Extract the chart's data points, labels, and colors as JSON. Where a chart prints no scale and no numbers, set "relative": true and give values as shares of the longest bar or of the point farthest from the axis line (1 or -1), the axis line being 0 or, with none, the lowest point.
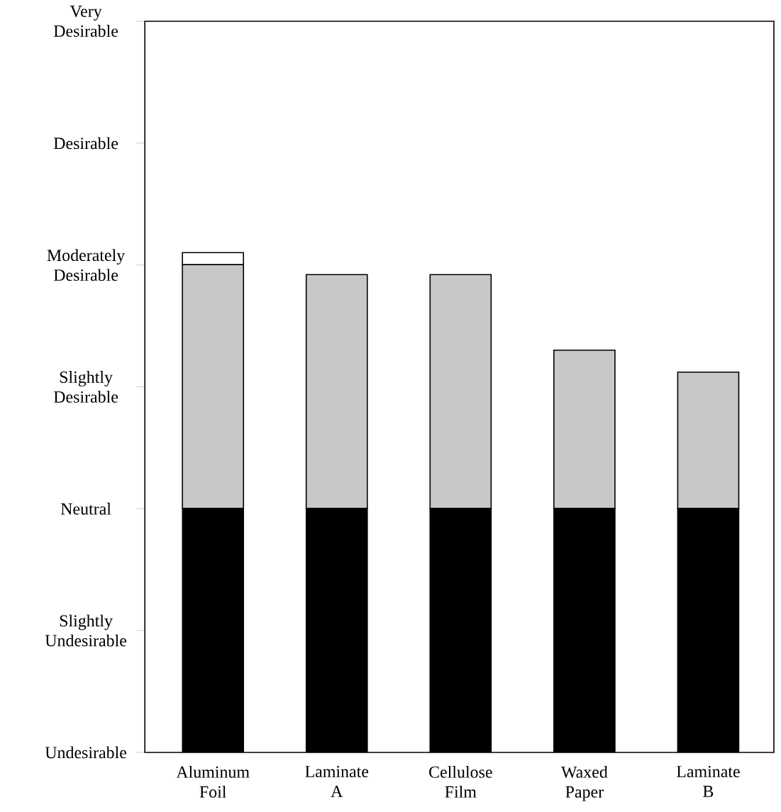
{
  "chart_data": {
    "type": "bar",
    "stacked": true,
    "relative": true,
    "categories": [
      "Aluminum Foil",
      "Laminate A",
      "Cellulose Film",
      "Waxed Paper",
      "Laminate B"
    ],
    "series": [
      {
        "color": "#000000",
        "values": [
          0.488,
          0.488,
          0.488,
          0.488,
          0.488
        ]
      },
      {
        "color": "#c8c8c8",
        "values": [
          0.488,
          0.468,
          0.468,
          0.317,
          0.273
        ]
      },
      {
        "color": "#ffffff",
        "values": [
          0.024,
          null,
          null,
          null,
          null
        ]
      }
    ],
    "annotations": [
      "Undesirable",
      "Slightly Undesirable",
      "Neutral",
      "Slightly Desirable",
      "Moderately Desirable",
      "Desirable",
      "Very Desirable"
    ],
    "grid": false
  }
}
